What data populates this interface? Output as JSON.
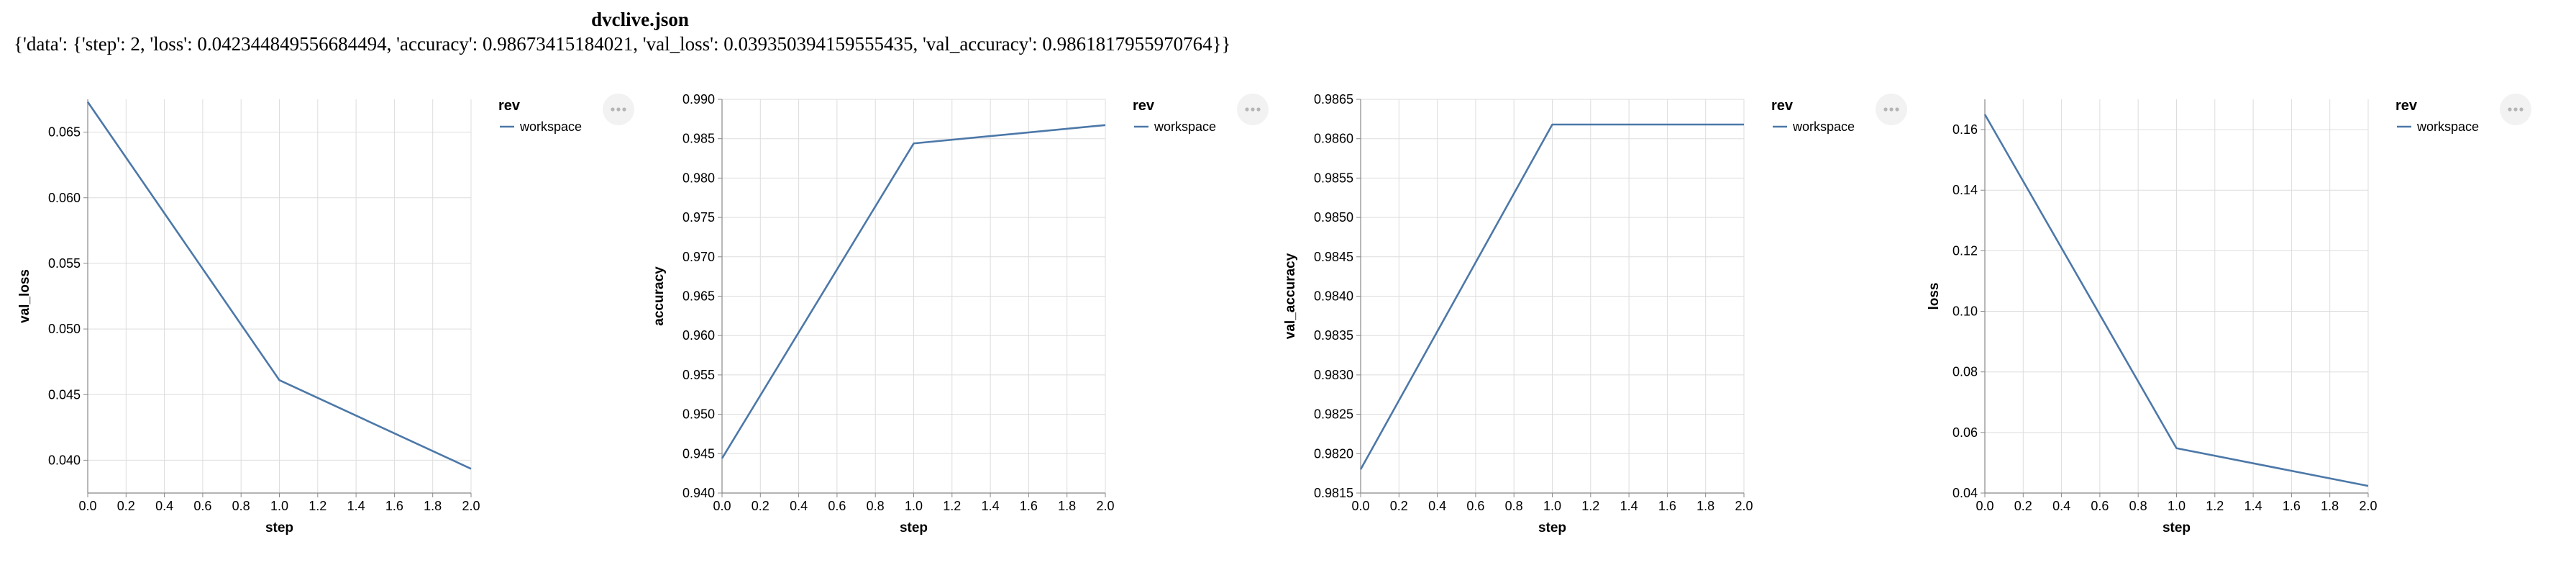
{
  "page": {
    "title": "dvclive.json",
    "summary": "{'data': {'step': 2, 'loss': 0.042344849556684494, 'accuracy': 0.98673415184021, 'val_loss': 0.039350394159555435, 'val_accuracy': 0.9861817955970764}}"
  },
  "colors": {
    "series": "#4c78a8",
    "grid": "#dddddd",
    "axis": "#888888",
    "menu_button": "#f2f2f2"
  },
  "icons": {
    "menu": "ellipsis-icon"
  },
  "chart_data": [
    {
      "type": "line",
      "xlabel": "step",
      "ylabel": "val_loss",
      "xlim": [
        0,
        2
      ],
      "ylim": [
        0.0375,
        0.0675
      ],
      "x_ticks": [
        "0.0",
        "0.2",
        "0.4",
        "0.6",
        "0.8",
        "1.0",
        "1.2",
        "1.4",
        "1.6",
        "1.8",
        "2.0"
      ],
      "y_ticks": [
        "0.040",
        "0.045",
        "0.050",
        "0.055",
        "0.060",
        "0.065"
      ],
      "legend_title": "rev",
      "series": [
        {
          "name": "workspace",
          "x": [
            0,
            1,
            2
          ],
          "y": [
            0.0673,
            0.0461,
            0.03935
          ]
        }
      ]
    },
    {
      "type": "line",
      "xlabel": "step",
      "ylabel": "accuracy",
      "xlim": [
        0,
        2
      ],
      "ylim": [
        0.94,
        0.99
      ],
      "x_ticks": [
        "0.0",
        "0.2",
        "0.4",
        "0.6",
        "0.8",
        "1.0",
        "1.2",
        "1.4",
        "1.6",
        "1.8",
        "2.0"
      ],
      "y_ticks": [
        "0.940",
        "0.945",
        "0.950",
        "0.955",
        "0.960",
        "0.965",
        "0.970",
        "0.975",
        "0.980",
        "0.985",
        "0.990"
      ],
      "legend_title": "rev",
      "series": [
        {
          "name": "workspace",
          "x": [
            0,
            1,
            2
          ],
          "y": [
            0.9444,
            0.9844,
            0.98673
          ]
        }
      ]
    },
    {
      "type": "line",
      "xlabel": "step",
      "ylabel": "val_accuracy",
      "xlim": [
        0,
        2
      ],
      "ylim": [
        0.9815,
        0.9865
      ],
      "x_ticks": [
        "0.0",
        "0.2",
        "0.4",
        "0.6",
        "0.8",
        "1.0",
        "1.2",
        "1.4",
        "1.6",
        "1.8",
        "2.0"
      ],
      "y_ticks": [
        "0.9815",
        "0.9820",
        "0.9825",
        "0.9830",
        "0.9835",
        "0.9840",
        "0.9845",
        "0.9850",
        "0.9855",
        "0.9860",
        "0.9865"
      ],
      "legend_title": "rev",
      "series": [
        {
          "name": "workspace",
          "x": [
            0,
            1,
            2
          ],
          "y": [
            0.9818,
            0.98618,
            0.98618
          ]
        }
      ]
    },
    {
      "type": "line",
      "xlabel": "step",
      "ylabel": "loss",
      "xlim": [
        0,
        2
      ],
      "ylim": [
        0.04,
        0.17
      ],
      "x_ticks": [
        "0.0",
        "0.2",
        "0.4",
        "0.6",
        "0.8",
        "1.0",
        "1.2",
        "1.4",
        "1.6",
        "1.8",
        "2.0"
      ],
      "y_ticks": [
        "0.04",
        "0.06",
        "0.08",
        "0.10",
        "0.12",
        "0.14",
        "0.16"
      ],
      "legend_title": "rev",
      "series": [
        {
          "name": "workspace",
          "x": [
            0,
            1,
            2
          ],
          "y": [
            0.165,
            0.0548,
            0.04234
          ]
        }
      ]
    }
  ]
}
